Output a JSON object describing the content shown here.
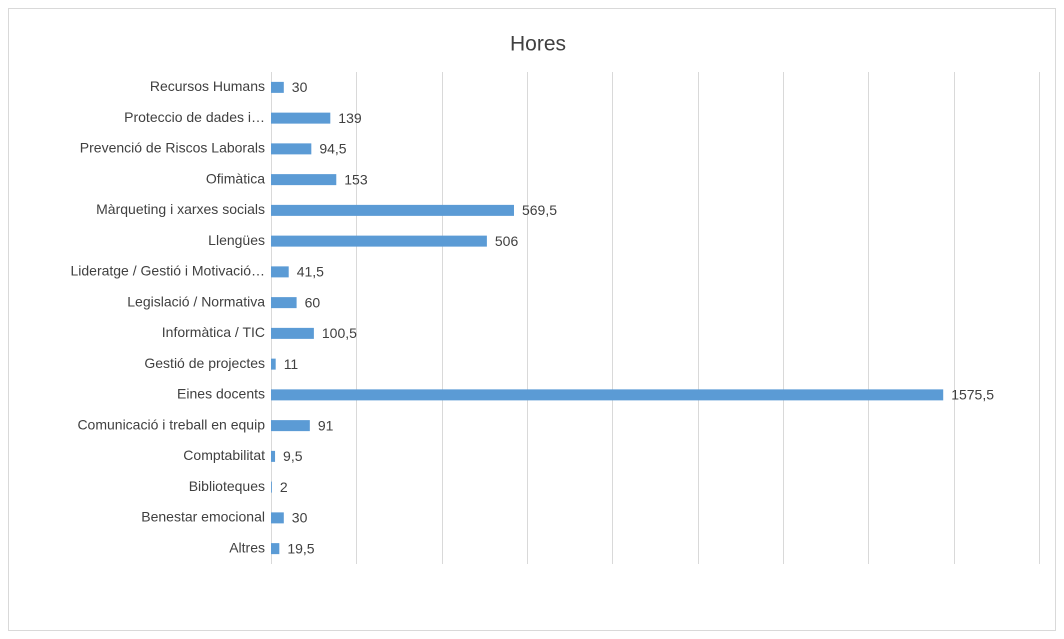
{
  "chart_data": {
    "type": "bar",
    "orientation": "horizontal",
    "title": "Hores",
    "categories": [
      "Recursos Humans",
      "Proteccio de dades  i…",
      "Prevenció de Riscos Laborals",
      "Ofimàtica",
      "Màrqueting i xarxes socials",
      "Llengües",
      "Lideratge / Gestió i Motivació…",
      "Legislació / Normativa",
      "Informàtica / TIC",
      "Gestió de projectes",
      "Eines docents",
      "Comunicació i treball en equip",
      "Comptabilitat",
      "Biblioteques",
      "Benestar emocional",
      "Altres"
    ],
    "values": [
      30,
      139,
      94.5,
      153,
      569.5,
      506,
      41.5,
      60,
      100.5,
      11,
      1575.5,
      91,
      9.5,
      2,
      30,
      19.5
    ],
    "value_labels": [
      "30",
      "139",
      "94,5",
      "153",
      "569,5",
      "506",
      "41,5",
      "60",
      "100,5",
      "11",
      "1575,5",
      "91",
      "9,5",
      "2",
      "30",
      "19,5"
    ],
    "color": "#5b9bd5",
    "xlim": [
      0,
      1800
    ],
    "xticks": [
      0,
      200,
      400,
      600,
      800,
      1000,
      1200,
      1400,
      1600,
      1800
    ],
    "grid": true
  }
}
